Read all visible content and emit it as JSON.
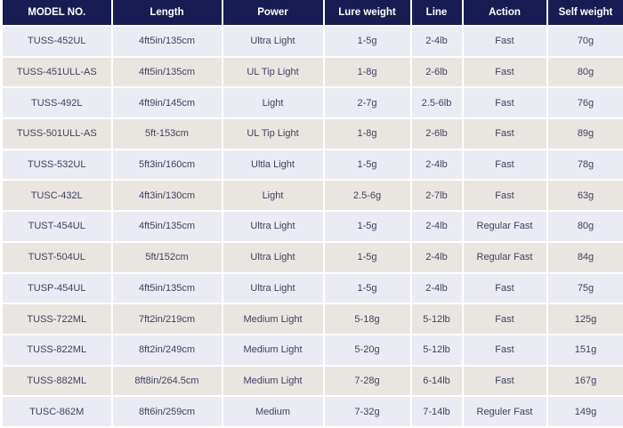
{
  "chart_data": {
    "type": "table",
    "title": "",
    "columns": [
      "MODEL NO.",
      "Length",
      "Power",
      "Lure weight",
      "Line",
      "Action",
      "Self weight"
    ],
    "rows": [
      [
        "TUSS-452UL",
        "4ft5in/135cm",
        "Ultra Light",
        "1-5g",
        "2-4lb",
        "Fast",
        "70g"
      ],
      [
        "TUSS-451ULL-AS",
        "4ft5in/135cm",
        "UL Tip Light",
        "1-8g",
        "2-6lb",
        "Fast",
        "80g"
      ],
      [
        "TUSS-492L",
        "4ft9in/145cm",
        "Light",
        "2-7g",
        "2.5-6lb",
        "Fast",
        "76g"
      ],
      [
        "TUSS-501ULL-AS",
        "5ft-153cm",
        "UL Tip Light",
        "1-8g",
        "2-6lb",
        "Fast",
        "89g"
      ],
      [
        "TUSS-532UL",
        "5ft3in/160cm",
        "Ultla Light",
        "1-5g",
        "2-4lb",
        "Fast",
        "78g"
      ],
      [
        "TUSC-432L",
        "4ft3in/130cm",
        "Light",
        "2.5-6g",
        "2-7lb",
        "Fast",
        "63g"
      ],
      [
        "TUST-454UL",
        "4ft5in/135cm",
        "Ultra Light",
        "1-5g",
        "2-4lb",
        "Regular Fast",
        "80g"
      ],
      [
        "TUST-504UL",
        "5ft/152cm",
        "Ultra Light",
        "1-5g",
        "2-4lb",
        "Regular Fast",
        "84g"
      ],
      [
        "TUSP-454UL",
        "4ft5in/135cm",
        "Ultra Light",
        "1-5g",
        "2-4lb",
        "Fast",
        "75g"
      ],
      [
        "TUSS-722ML",
        "7ft2in/219cm",
        "Medium Light",
        "5-18g",
        "5-12lb",
        "Fast",
        "125g"
      ],
      [
        "TUSS-822ML",
        "8ft2in/249cm",
        "Medium Light",
        "5-20g",
        "5-12lb",
        "Fast",
        "151g"
      ],
      [
        "TUSS-882ML",
        "8ft8in/264.5cm",
        "Medium Light",
        "7-28g",
        "6-14lb",
        "Fast",
        "167g"
      ],
      [
        "TUSC-862M",
        "8ft6in/259cm",
        "Medium",
        "7-32g",
        "7-14lb",
        "Reguler Fast",
        "149g"
      ]
    ],
    "legend": "none",
    "grid": "white 2px separators, alternating row shading"
  },
  "colors": {
    "header_bg": "#181c52",
    "header_text": "#ffffff",
    "row_odd_bg": "#ebebf3",
    "row_even_bg": "#e9e6e1",
    "cell_text": "#3f415f",
    "grid_line": "#ffffff"
  }
}
